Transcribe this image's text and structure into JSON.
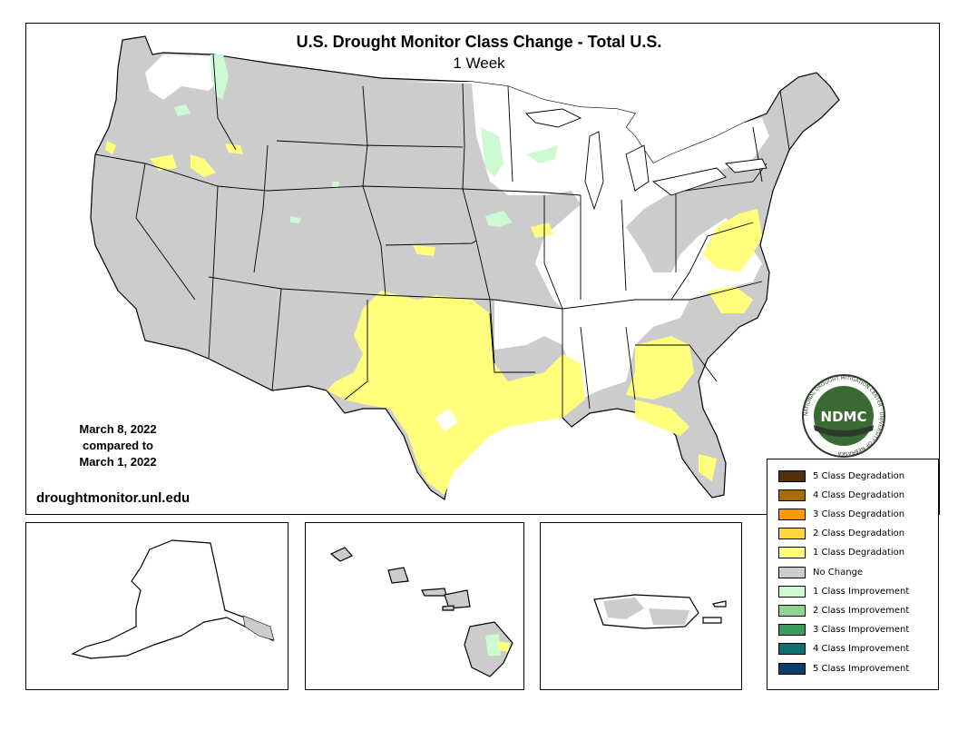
{
  "title": "U.S. Drought Monitor Class Change - Total U.S.",
  "subtitle": "1 Week",
  "date_lines": [
    "March 8, 2022",
    "compared to",
    "March 1, 2022"
  ],
  "website": "droughtmonitor.unl.edu",
  "logo": {
    "text": "NDMC",
    "ring_text": "NATIONAL DROUGHT MITIGATION CENTER · UNIVERSITY OF NEBRASKA"
  },
  "legend": {
    "items": [
      {
        "label": "5 Class Degradation",
        "color": "#54300e"
      },
      {
        "label": "4 Class Degradation",
        "color": "#a86d00"
      },
      {
        "label": "3 Class Degradation",
        "color": "#ff9a00"
      },
      {
        "label": "2 Class Degradation",
        "color": "#ffd23f"
      },
      {
        "label": "1 Class Degradation",
        "color": "#ffff7d"
      },
      {
        "label": "No Change",
        "color": "#cccccc"
      },
      {
        "label": "1 Class Improvement",
        "color": "#cdfad3"
      },
      {
        "label": "2 Class Improvement",
        "color": "#8fd48f"
      },
      {
        "label": "3 Class Improvement",
        "color": "#3c9a5c"
      },
      {
        "label": "4 Class Improvement",
        "color": "#0f6e70"
      },
      {
        "label": "5 Class Improvement",
        "color": "#0a3d6e"
      }
    ]
  },
  "colors": {
    "no_change": "#cccccc",
    "degrade1": "#ffff7d",
    "improve1": "#cdfad3",
    "white": "#ffffff",
    "border": "#000000",
    "logo_green": "#3a6b35",
    "logo_dark": "#2d3b2a"
  }
}
